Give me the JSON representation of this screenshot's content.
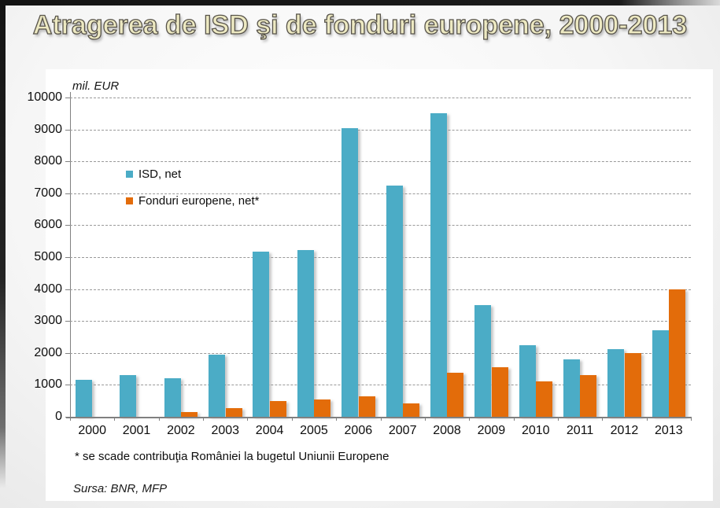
{
  "slide": {
    "title": "Atragerea de ISD şi de fonduri europene, 2000-2013",
    "footnote": "* se scade contribuţia României la bugetul Uniunii Europene",
    "source": "Sursa: BNR, MFP"
  },
  "chart_data": {
    "type": "bar",
    "unit_label": "mil. EUR",
    "categories": [
      "2000",
      "2001",
      "2002",
      "2003",
      "2004",
      "2005",
      "2006",
      "2007",
      "2008",
      "2009",
      "2010",
      "2011",
      "2012",
      "2013"
    ],
    "series": [
      {
        "name": "ISD, net",
        "color": "#4BACC6",
        "values": [
          1150,
          1300,
          1200,
          1950,
          5180,
          5210,
          9050,
          7250,
          9500,
          3490,
          2230,
          1800,
          2120,
          2710
        ]
      },
      {
        "name": "Fonduri europene, net*",
        "color": "#E36C0A",
        "values": [
          0,
          0,
          160,
          270,
          490,
          550,
          650,
          430,
          1380,
          1550,
          1120,
          1300,
          2000,
          4000
        ]
      }
    ],
    "ylim": [
      0,
      10000
    ],
    "ytick_step": 1000,
    "grid": "dashed-horizontal",
    "legend_position": "inside-upper-left",
    "axis_color": "#808080",
    "grid_color": "#999999"
  }
}
